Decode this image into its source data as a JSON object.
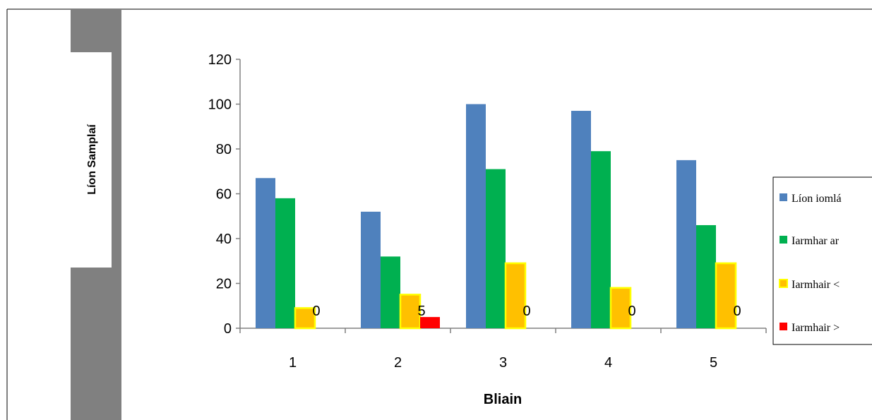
{
  "chart_data": {
    "type": "bar",
    "xlabel": "Bliain",
    "ylabel": "Líon Samplaí",
    "categories": [
      "1",
      "2",
      "3",
      "4",
      "5"
    ],
    "ylim": [
      0,
      120
    ],
    "yticks": [
      0,
      20,
      40,
      60,
      80,
      100,
      120
    ],
    "grid": false,
    "legend_position": "right",
    "series": [
      {
        "name": "Líon iomlá",
        "color": "#4f81bd",
        "values": [
          67,
          52,
          100,
          97,
          75
        ]
      },
      {
        "name": "Iarmhar ar",
        "color": "#00b050",
        "values": [
          58,
          32,
          71,
          79,
          46
        ]
      },
      {
        "name": "Iarmhair <",
        "color": "#ffc000",
        "border": "#ffff00",
        "values": [
          9,
          15,
          29,
          18,
          29
        ]
      },
      {
        "name": "Iarmhair >",
        "color": "#ff0000",
        "values": [
          0,
          5,
          0,
          0,
          0
        ],
        "data_labels": [
          "0",
          "5",
          "0",
          "0",
          "0"
        ]
      }
    ]
  }
}
